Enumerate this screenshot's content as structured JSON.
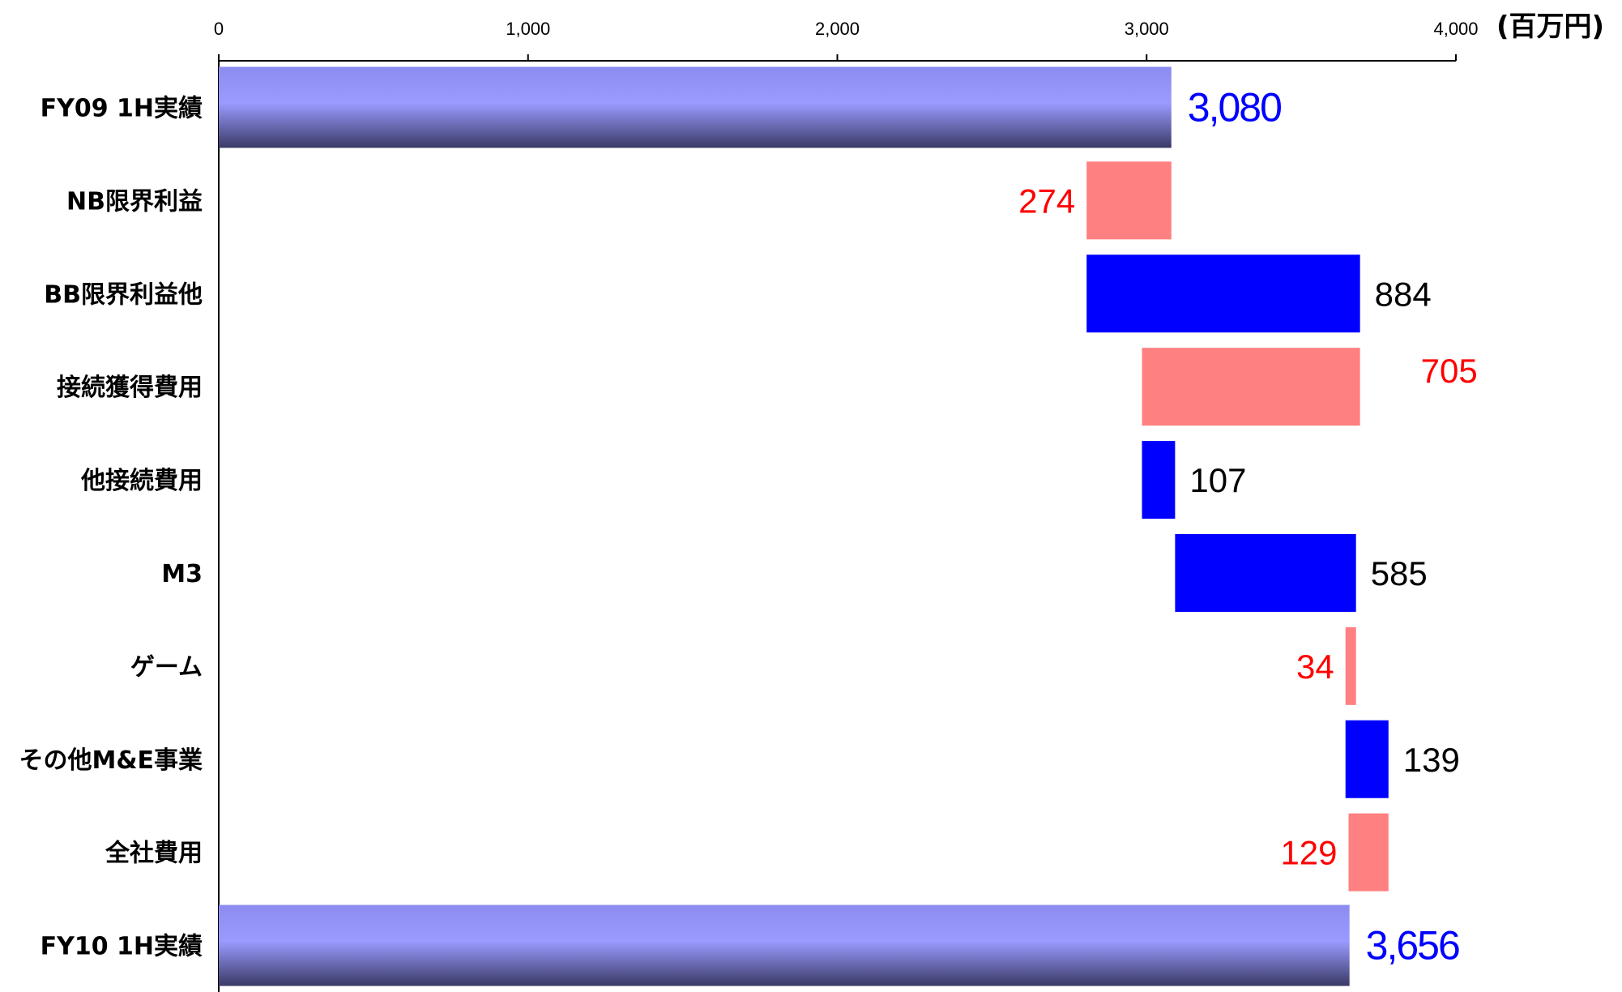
{
  "chart_data": {
    "type": "bar",
    "subtype": "waterfall-horizontal",
    "unit": "(百万円)",
    "xlim": [
      0,
      4000
    ],
    "ticks": [
      0,
      1000,
      2000,
      3000,
      4000
    ],
    "tick_labels": [
      "0",
      "1,000",
      "2,000",
      "3,000",
      "4,000"
    ],
    "grid": false,
    "legend": "none",
    "colors": {
      "total_gradient_light": "#9a9aff",
      "total_gradient_dark": "#3a3a66",
      "increase": "#0000ff",
      "decrease": "#ff8080",
      "total_label": "#0000ff",
      "increase_label": "#000000",
      "decrease_label": "#ff0000"
    },
    "bars": [
      {
        "category": "FY09 1H実績",
        "kind": "total",
        "start": 0,
        "end": 3080,
        "value": 3080,
        "label": "3,080"
      },
      {
        "category": "NB限界利益",
        "kind": "decrease",
        "start": 2806,
        "end": 3080,
        "value": -274,
        "label": "274"
      },
      {
        "category": "BB限界利益他",
        "kind": "increase",
        "start": 2806,
        "end": 3690,
        "value": 884,
        "label": "884"
      },
      {
        "category": "接続獲得費用",
        "kind": "decrease",
        "start": 2985,
        "end": 3690,
        "value": -705,
        "label": "705"
      },
      {
        "category": "他接続費用",
        "kind": "increase",
        "start": 2985,
        "end": 3092,
        "value": 107,
        "label": "107"
      },
      {
        "category": "M3",
        "kind": "increase",
        "start": 3092,
        "end": 3677,
        "value": 585,
        "label": "585"
      },
      {
        "category": "ゲーム",
        "kind": "decrease",
        "start": 3643,
        "end": 3677,
        "value": -34,
        "label": "34"
      },
      {
        "category": "その他M&E事業",
        "kind": "increase",
        "start": 3643,
        "end": 3782,
        "value": 139,
        "label": "139"
      },
      {
        "category": "全社費用",
        "kind": "decrease",
        "start": 3653,
        "end": 3782,
        "value": -129,
        "label": "129"
      },
      {
        "category": "FY10 1H実績",
        "kind": "total",
        "start": 0,
        "end": 3656,
        "value": 3656,
        "label": "3,656"
      }
    ]
  }
}
